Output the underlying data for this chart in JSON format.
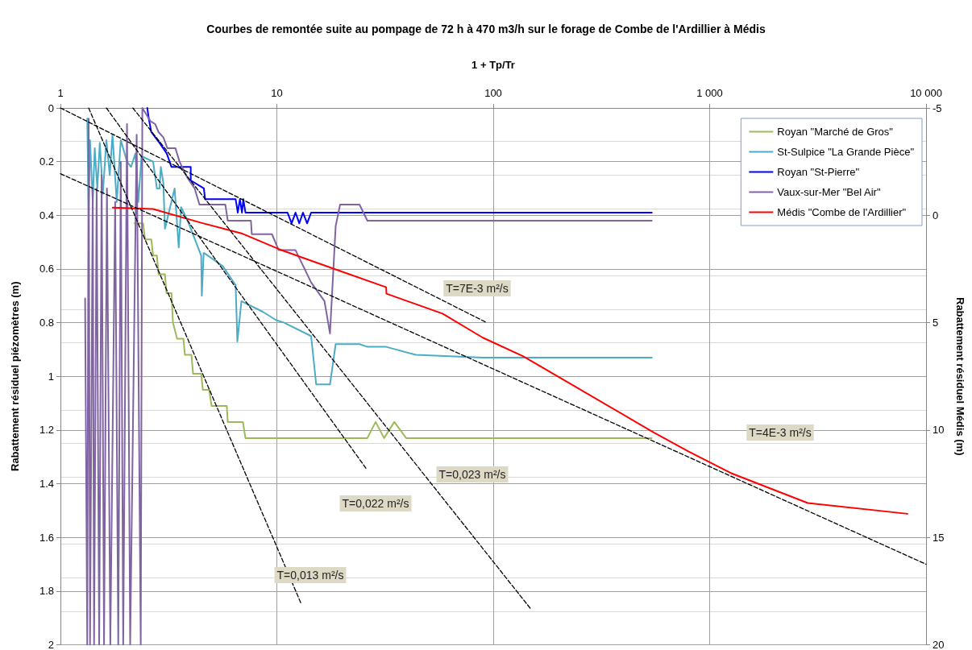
{
  "chart_data": {
    "type": "line",
    "title": "Courbes de remontée suite au pompage de 72 h à 470 m3/h sur le forage de Combe de l'Ardillier à Médis",
    "xlabel": "1 + Tp/Tr",
    "ylabel": "Rabattement résiduel piézomètres (m)",
    "y2label": "Rabattement résiduel Médis (m)",
    "log": "x",
    "grid": true,
    "legend": "top right",
    "line_style": "solid",
    "xlim": [
      1,
      10000
    ],
    "xticks": [
      1,
      10,
      100,
      {
        "value": 1000,
        "label": "1 000"
      },
      {
        "value": 10000,
        "label": "10 000"
      }
    ],
    "ylim": [
      2,
      0
    ],
    "yticks": [
      0,
      0.2,
      0.4,
      0.6,
      0.8,
      1,
      1.2,
      1.4,
      1.6,
      1.8,
      2
    ],
    "y2lim": [
      20,
      -5
    ],
    "y2ticks": [
      -5,
      0,
      5,
      10,
      15,
      20
    ],
    "series": [
      {
        "name": "Royan \"Marché de Gros\"",
        "color": "#9bbb59",
        "x": [
          2.2,
          2.41,
          2.46,
          2.63,
          2.68,
          2.79,
          2.84,
          3.04,
          3.09,
          3.26,
          3.31,
          3.46,
          3.7,
          3.76,
          4.03,
          4.1,
          4.47,
          4.55,
          4.87,
          4.99,
          5.87,
          5.93,
          6.97,
          7.16,
          26.2,
          28.6,
          31.3,
          34.9,
          39.6,
          540
        ],
        "values": [
          0.43,
          0.43,
          0.49,
          0.49,
          0.55,
          0.55,
          0.62,
          0.62,
          0.69,
          0.69,
          0.8,
          0.86,
          0.86,
          0.92,
          0.92,
          0.99,
          0.99,
          1.05,
          1.05,
          1.11,
          1.11,
          1.17,
          1.17,
          1.23,
          1.23,
          1.17,
          1.23,
          1.17,
          1.23,
          1.23
        ]
      },
      {
        "name": "St-Sulpice \"La Grande Pièce\"",
        "color": "#4bacc6",
        "x": [
          1.33,
          1.35,
          1.37,
          1.41,
          1.44,
          1.48,
          1.52,
          1.57,
          1.63,
          1.69,
          1.74,
          1.82,
          1.9,
          2.03,
          2.12,
          2.22,
          2.29,
          2.37,
          2.68,
          2.79,
          2.87,
          2.91,
          2.99,
          3.04,
          3.37,
          3.52,
          3.61,
          3.87,
          4.47,
          4.5,
          4.59,
          5.0,
          5.63,
          6.45,
          6.57,
          6.86,
          8.63,
          9.9,
          10.8,
          14.4,
          15.2,
          17.6,
          18.7,
          24.1,
          26.2,
          32.0,
          43.9,
          89.5,
          540
        ],
        "values": [
          0.04,
          0.4,
          0.12,
          0.35,
          0.15,
          0.3,
          0.13,
          0.32,
          0.12,
          0.25,
          0.1,
          0.35,
          0.12,
          0.2,
          0.22,
          0.17,
          0.35,
          0.18,
          0.2,
          0.3,
          0.3,
          0.22,
          0.28,
          0.45,
          0.3,
          0.52,
          0.37,
          0.42,
          0.55,
          0.7,
          0.54,
          0.56,
          0.59,
          0.66,
          0.87,
          0.72,
          0.76,
          0.79,
          0.8,
          0.85,
          1.03,
          1.03,
          0.88,
          0.88,
          0.89,
          0.89,
          0.92,
          0.93,
          0.93
        ]
      },
      {
        "name": "Royan \"St-Pierre\"",
        "color": "#0000ff",
        "x": [
          2.52,
          2.56,
          2.63,
          2.87,
          3.1,
          3.26,
          4.0,
          4.0,
          4.6,
          4.66,
          6.45,
          6.6,
          6.75,
          6.9,
          7.0,
          7.16,
          11.2,
          11.7,
          12.2,
          12.7,
          13.2,
          13.8,
          14.4,
          540
        ],
        "values": [
          0,
          0.04,
          0.09,
          0.13,
          0.17,
          0.22,
          0.22,
          0.27,
          0.3,
          0.34,
          0.34,
          0.39,
          0.34,
          0.39,
          0.34,
          0.39,
          0.39,
          0.43,
          0.39,
          0.43,
          0.39,
          0.43,
          0.39,
          0.39
        ]
      },
      {
        "name": "Vaux-sur-Mer \"Bel Air\"",
        "color": "#8064a2",
        "x": [
          1.3,
          1.33,
          1.35,
          1.37,
          1.41,
          1.43,
          1.47,
          1.51,
          1.55,
          1.59,
          1.64,
          1.7,
          1.79,
          1.85,
          1.9,
          1.95,
          2.03,
          2.1,
          2.25,
          2.35,
          2.39,
          2.61,
          2.74,
          2.84,
          2.99,
          3.12,
          3.4,
          3.55,
          3.86,
          4.17,
          4.39,
          5.78,
          5.93,
          7.59,
          7.66,
          9.49,
          10.2,
          12.2,
          14.4,
          16.6,
          17.6,
          18.7,
          19.6,
          24.1,
          26.2,
          540
        ],
        "values": [
          0.71,
          2,
          0.04,
          2,
          0.3,
          2,
          0.3,
          2,
          0.25,
          2,
          0.3,
          2,
          0.35,
          2,
          0.2,
          2,
          0.06,
          2,
          0.1,
          2,
          0,
          0.05,
          0.06,
          0.09,
          0.11,
          0.15,
          0.15,
          0.2,
          0.26,
          0.3,
          0.36,
          0.36,
          0.42,
          0.42,
          0.47,
          0.47,
          0.53,
          0.53,
          0.65,
          0.72,
          0.84,
          0.44,
          0.36,
          0.36,
          0.42,
          0.42
        ]
      },
      {
        "name": "Médis \"Combe de l'Ardillier\"",
        "color": "#ff0000",
        "axis": "y2",
        "x": [
          1.744,
          2.68,
          4.47,
          6.86,
          10.3,
          18.7,
          32.0,
          32.1,
          58.3,
          89.5,
          137,
          204,
          549,
          800,
          1250,
          2840,
          8200
        ],
        "values": [
          -0.36,
          -0.29,
          0.35,
          0.84,
          1.59,
          2.52,
          3.35,
          3.65,
          4.58,
          5.7,
          6.56,
          7.57,
          10.1,
          11.0,
          12.0,
          13.4,
          13.9
        ]
      },
      {
        "type": "line",
        "color": "#000000",
        "line_style": "dashed",
        "x": [
          1,
          10000
        ],
        "values": [
          0.245,
          1.7
        ]
      },
      {
        "type": "line",
        "color": "#000000",
        "line_style": "dashed",
        "x": [
          1,
          93.4
        ],
        "values": [
          0,
          0.8
        ]
      },
      {
        "type": "line",
        "color": "#000000",
        "line_style": "dashed",
        "x": [
          2.16,
          149.6
        ],
        "values": [
          0,
          1.868
        ]
      },
      {
        "type": "line",
        "color": "#000000",
        "line_style": "dashed",
        "x": [
          1.63,
          25.9
        ],
        "values": [
          0,
          1.344
        ]
      },
      {
        "type": "line",
        "color": "#000000",
        "line_style": "dashed",
        "x": [
          1.35,
          13.0
        ],
        "values": [
          0,
          1.85
        ]
      }
    ],
    "annotations": [
      "T=7E-3 m²/s",
      "T=0,023 m²/s",
      "T=0,022 m²/s",
      "T=0,013 m²/s",
      "T=4E-3 m²/s"
    ]
  }
}
